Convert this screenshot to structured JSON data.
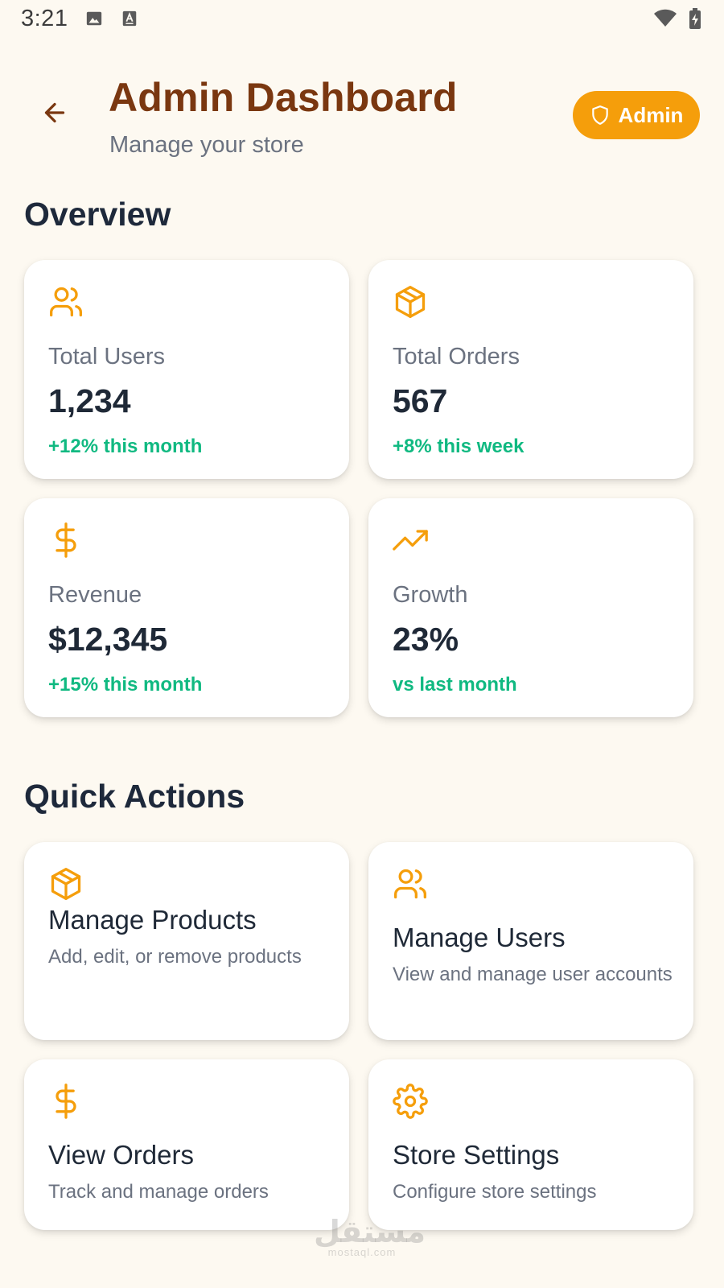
{
  "status_bar": {
    "time": "3:21",
    "icons": [
      "image-icon",
      "keyboard-a-icon",
      "wifi-icon",
      "battery-charging-icon"
    ]
  },
  "header": {
    "title": "Admin Dashboard",
    "subtitle": "Manage your store",
    "badge_label": "Admin"
  },
  "overview": {
    "title": "Overview",
    "stats": [
      {
        "icon": "users-icon",
        "label": "Total Users",
        "value": "1,234",
        "change": "+12% this month"
      },
      {
        "icon": "package-icon",
        "label": "Total Orders",
        "value": "567",
        "change": "+8% this week"
      },
      {
        "icon": "dollar-icon",
        "label": "Revenue",
        "value": "$12,345",
        "change": "+15% this month"
      },
      {
        "icon": "trending-up-icon",
        "label": "Growth",
        "value": "23%",
        "change": "vs last month"
      }
    ]
  },
  "quick_actions": {
    "title": "Quick Actions",
    "items": [
      {
        "icon": "package-icon",
        "title": "Manage Products",
        "desc": "Add, edit, or remove products"
      },
      {
        "icon": "users-icon",
        "title": "Manage Users",
        "desc": "View and manage user accounts"
      },
      {
        "icon": "dollar-icon",
        "title": "View Orders",
        "desc": "Track and manage orders"
      },
      {
        "icon": "gear-icon",
        "title": "Store Settings",
        "desc": "Configure store settings"
      }
    ]
  },
  "watermark": {
    "arabic": "مستقل",
    "latin": "mostaql.com"
  },
  "colors": {
    "accent": "#f59e0b",
    "title_brown": "#7a3710",
    "positive_green": "#10b981",
    "background": "#fdf9f1"
  }
}
